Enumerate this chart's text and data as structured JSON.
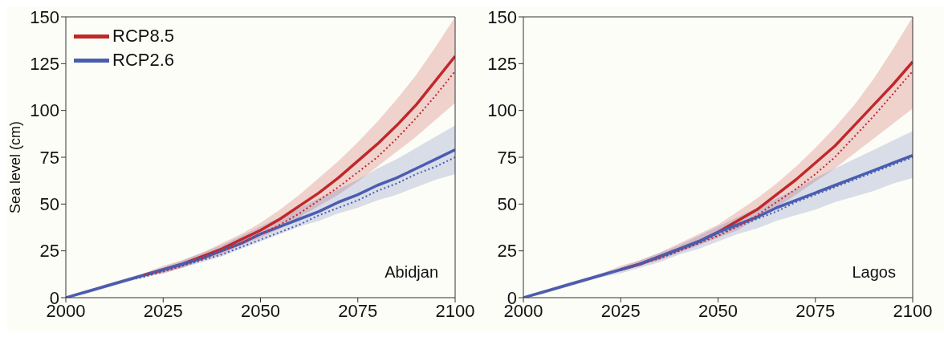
{
  "chart_data": [
    {
      "type": "line",
      "ylabel": "Sea level (cm)",
      "annotations": [
        "Abidjan"
      ],
      "legend": "top left",
      "grid": false,
      "x": [
        2000,
        2005,
        2010,
        2015,
        2020,
        2025,
        2030,
        2035,
        2040,
        2045,
        2050,
        2055,
        2060,
        2065,
        2070,
        2075,
        2080,
        2085,
        2090,
        2095,
        2100
      ],
      "xlim": [
        2000,
        2100
      ],
      "xticks": [
        2000,
        2025,
        2050,
        2075,
        2100
      ],
      "ylim": [
        0,
        150
      ],
      "yticks": [
        0,
        25,
        50,
        75,
        100,
        125,
        150
      ],
      "series": [
        {
          "name": "RCP8.5",
          "color": "#c0282a",
          "line_style": "solid",
          "values": [
            null,
            null,
            null,
            null,
            12,
            15,
            18,
            22,
            26,
            31,
            36,
            42,
            49,
            56,
            64,
            73,
            82,
            92,
            103,
            116,
            129
          ],
          "lower": [
            0,
            2,
            5,
            8,
            11,
            13,
            16,
            20,
            23,
            28,
            32,
            37,
            43,
            49,
            55,
            62,
            70,
            78,
            86,
            95,
            104
          ],
          "upper": [
            0,
            3,
            7,
            10,
            13,
            17,
            20,
            24,
            29,
            34,
            40,
            47,
            55,
            64,
            73,
            83,
            94,
            106,
            119,
            134,
            150
          ]
        },
        {
          "color": "#c0282a",
          "line_style": "dotted",
          "values": [
            null,
            null,
            null,
            null,
            12,
            14,
            17,
            21,
            25,
            29,
            34,
            39,
            45,
            52,
            59,
            67,
            75,
            85,
            96,
            108,
            121
          ]
        },
        {
          "name": "RCP2.6",
          "color": "#4a5db0",
          "line_style": "solid",
          "values": [
            0,
            3,
            6,
            9,
            12,
            15,
            18,
            21,
            25,
            29,
            34,
            38,
            42,
            46,
            51,
            55,
            60,
            64,
            69,
            74,
            79
          ],
          "lower": [
            0,
            2,
            5,
            8,
            11,
            13,
            16,
            19,
            22,
            26,
            30,
            34,
            38,
            41,
            45,
            48,
            52,
            55,
            59,
            63,
            66
          ],
          "upper": [
            0,
            3,
            7,
            10,
            13,
            16,
            20,
            24,
            28,
            33,
            38,
            43,
            48,
            53,
            58,
            63,
            69,
            74,
            80,
            86,
            92
          ]
        },
        {
          "color": "#4a5db0",
          "line_style": "dotted",
          "values": [
            0,
            3,
            6,
            9,
            11,
            14,
            17,
            20,
            23,
            27,
            31,
            35,
            39,
            44,
            48,
            52,
            57,
            61,
            66,
            70,
            75
          ]
        }
      ]
    },
    {
      "type": "line",
      "annotations": [
        "Lagos"
      ],
      "grid": false,
      "x": [
        2000,
        2005,
        2010,
        2015,
        2020,
        2025,
        2030,
        2035,
        2040,
        2045,
        2050,
        2055,
        2060,
        2065,
        2070,
        2075,
        2080,
        2085,
        2090,
        2095,
        2100
      ],
      "xlim": [
        2000,
        2100
      ],
      "xticks": [
        2000,
        2025,
        2050,
        2075,
        2100
      ],
      "ylim": [
        0,
        150
      ],
      "yticks": [
        0,
        25,
        50,
        75,
        100,
        125,
        150
      ],
      "series": [
        {
          "color": "#c0282a",
          "line_style": "solid",
          "values": [
            null,
            null,
            null,
            null,
            null,
            15,
            18,
            22,
            26,
            30,
            35,
            41,
            47,
            55,
            63,
            72,
            81,
            92,
            103,
            114,
            126
          ],
          "lower": [
            0,
            2,
            5,
            8,
            11,
            14,
            17,
            20,
            24,
            28,
            32,
            36,
            42,
            48,
            55,
            62,
            69,
            77,
            85,
            93,
            101
          ],
          "upper": [
            0,
            3,
            7,
            10,
            13,
            17,
            20,
            24,
            29,
            34,
            39,
            46,
            53,
            61,
            70,
            80,
            91,
            103,
            117,
            133,
            150
          ]
        },
        {
          "color": "#c0282a",
          "line_style": "dotted",
          "values": [
            null,
            null,
            null,
            null,
            null,
            15,
            18,
            21,
            25,
            29,
            33,
            38,
            44,
            51,
            58,
            66,
            75,
            86,
            97,
            109,
            121
          ]
        },
        {
          "color": "#4a5db0",
          "line_style": "solid",
          "values": [
            0,
            3,
            6,
            9,
            12,
            15,
            18,
            22,
            26,
            30,
            35,
            39,
            43,
            48,
            52,
            56,
            60,
            64,
            68,
            72,
            76
          ],
          "lower": [
            0,
            2,
            5,
            8,
            11,
            13,
            16,
            19,
            23,
            26,
            30,
            34,
            37,
            41,
            44,
            47,
            51,
            54,
            57,
            61,
            64
          ],
          "upper": [
            0,
            3,
            7,
            10,
            13,
            16,
            20,
            24,
            28,
            33,
            38,
            43,
            48,
            53,
            58,
            64,
            69,
            74,
            79,
            84,
            89
          ]
        },
        {
          "color": "#4a5db0",
          "line_style": "dotted",
          "values": [
            0,
            3,
            6,
            9,
            12,
            15,
            18,
            21,
            25,
            29,
            34,
            38,
            42,
            46,
            51,
            55,
            59,
            63,
            67,
            71,
            75
          ]
        }
      ]
    }
  ]
}
